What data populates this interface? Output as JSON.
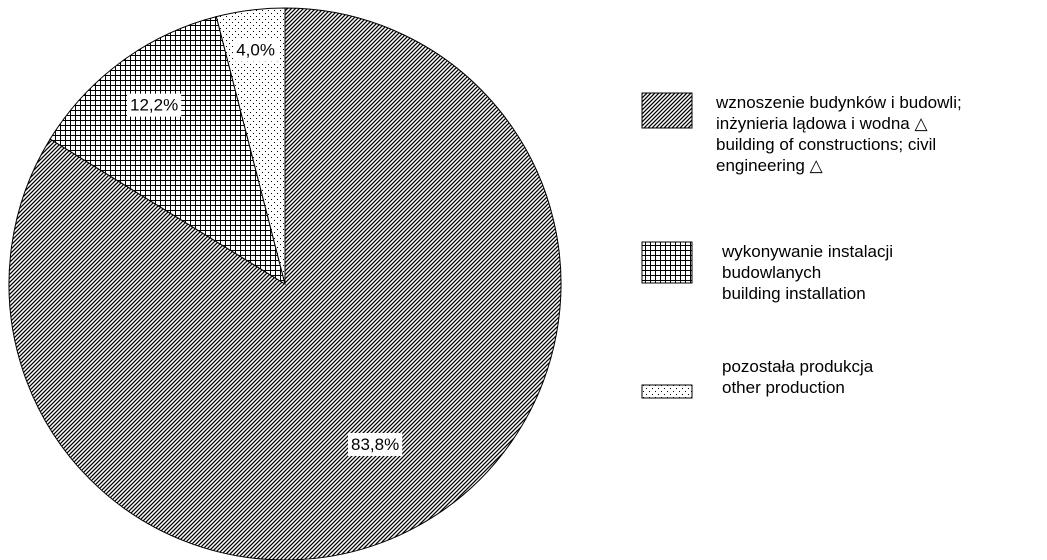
{
  "chart_data": {
    "type": "pie",
    "categories": [
      "wznoszenie budynków i budowli;\ninżynieria lądowa i wodna △\nbuilding of constructions; civil\nengineering △",
      "wykonywanie instalacji\nbudowlanych\nbuilding installation",
      "pozostała produkcja\nother production"
    ],
    "values": [
      83.8,
      12.2,
      4.0
    ],
    "value_labels": [
      "83,8%",
      "12,2%",
      "4,0%"
    ],
    "patterns": [
      "diagonal",
      "grid",
      "dots"
    ],
    "legend": "right"
  }
}
